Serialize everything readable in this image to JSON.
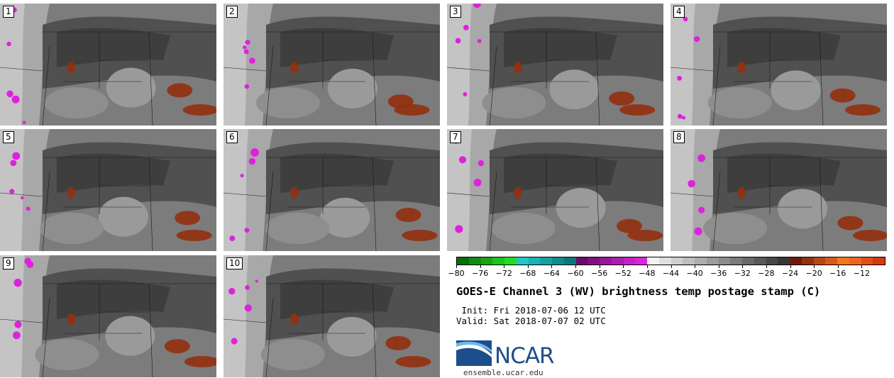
{
  "panels": [
    {
      "label": "1"
    },
    {
      "label": "2"
    },
    {
      "label": "3"
    },
    {
      "label": "4"
    },
    {
      "label": "5"
    },
    {
      "label": "6"
    },
    {
      "label": "7"
    },
    {
      "label": "8"
    },
    {
      "label": "9"
    },
    {
      "label": "10"
    }
  ],
  "colorbar": {
    "tick_labels": [
      "−80",
      "−76",
      "−72",
      "−68",
      "−64",
      "−60",
      "−56",
      "−52",
      "−48",
      "−44",
      "−40",
      "−36",
      "−32",
      "−28",
      "−24",
      "−20",
      "−16",
      "−12"
    ],
    "colors": [
      "#0a6b0a",
      "#118a11",
      "#16a316",
      "#1cc41c",
      "#22dd22",
      "#1ec8c8",
      "#18b4b4",
      "#13a0a0",
      "#0f8c8c",
      "#0b7878",
      "#6a0a6a",
      "#820f82",
      "#9a159a",
      "#b01bb0",
      "#c820c8",
      "#dd22dd",
      "#f2f2f2",
      "#e0e0e0",
      "#cfcfcf",
      "#bebebe",
      "#adadad",
      "#9c9c9c",
      "#8b8b8b",
      "#7a7a7a",
      "#696969",
      "#585858",
      "#474747",
      "#363636",
      "#6e1a0a",
      "#94300e",
      "#b84516",
      "#d85a1a",
      "#f2781a",
      "#f0641a",
      "#e44e16",
      "#d13a12"
    ]
  },
  "title": "GOES-E Channel 3 (WV) brightness temp postage stamp (C)",
  "init": " Init: Fri 2018-07-06 12 UTC",
  "valid": "Valid: Sat 2018-07-07 02 UTC",
  "logo": {
    "text": "NCAR",
    "url_text": "ensemble.ucar.edu"
  }
}
